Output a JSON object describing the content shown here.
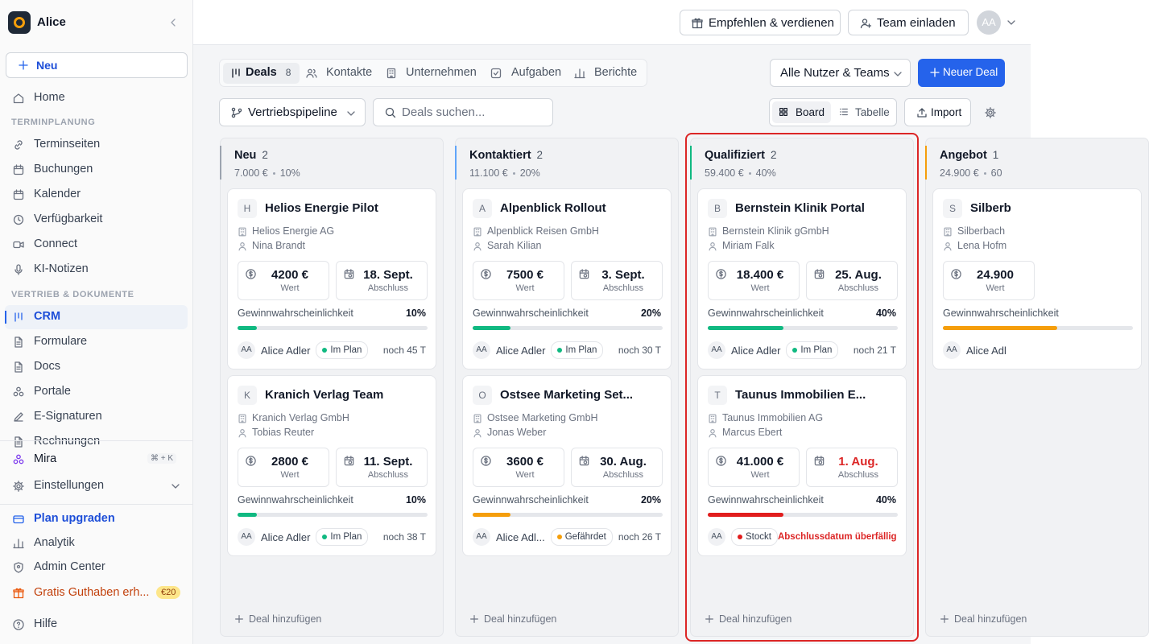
{
  "sidebar": {
    "workspace": "Alice",
    "new_button": "Neu",
    "home": "Home",
    "sections": [
      {
        "heading": "TERMINPLANUNG",
        "items": [
          "Terminseiten",
          "Buchungen",
          "Kalender",
          "Verfügbarkeit",
          "Connect",
          "KI-Notizen"
        ]
      },
      {
        "heading": "VERTRIEB & DOKUMENTE",
        "items": [
          "CRM",
          "Formulare",
          "Docs",
          "Portale",
          "E-Signaturen",
          "Rechnungen"
        ]
      }
    ],
    "assistant": "Mira",
    "shortcut": "⌘ + K",
    "settings": "Einstellungen",
    "upgrade": "Plan upgraden",
    "analytics": "Analytik",
    "admin": "Admin Center",
    "credit": "Gratis Guthaben erh...",
    "credit_badge": "€20",
    "help": "Hilfe"
  },
  "topbar": {
    "refer": "Empfehlen & verdienen",
    "invite": "Team einladen",
    "avatar": "AA"
  },
  "tabs": [
    {
      "label": "Deals",
      "count": "8"
    },
    {
      "label": "Kontakte"
    },
    {
      "label": "Unternehmen"
    },
    {
      "label": "Aufgaben"
    },
    {
      "label": "Berichte"
    }
  ],
  "filters": {
    "owner": "Alle Nutzer & Teams",
    "new_deal": "Neuer Deal",
    "pipeline": "Vertriebspipeline",
    "search_placeholder": "Deals suchen...",
    "views": [
      "Board",
      "Tabelle"
    ],
    "import": "Import"
  },
  "board": {
    "labels": {
      "value": "Wert",
      "close": "Abschluss",
      "probability": "Gewinnwahrscheinlichkeit"
    },
    "add_deal": "Deal hinzufügen",
    "columns": [
      {
        "name": "Neu",
        "count": "2",
        "total": "7.000 €",
        "probability": "10%",
        "accent": "#9ca3af",
        "cards": [
          {
            "initial": "H",
            "title": "Helios Energie Pilot",
            "company": "Helios Energie AG",
            "contact": "Nina Brandt",
            "value": "4200 €",
            "close_date": "18. Sept.",
            "probability": {
              "value": 10,
              "label": "10%"
            },
            "bar_color": "#10b981",
            "owner_initials": "AA",
            "owner": "Alice Adler",
            "status": "Im Plan",
            "status_color": "#10b981",
            "remaining": "noch 45 T"
          },
          {
            "initial": "K",
            "title": "Kranich Verlag Team",
            "company": "Kranich Verlag GmbH",
            "contact": "Tobias Reuter",
            "value": "2800 €",
            "close_date": "11. Sept.",
            "probability": {
              "value": 10,
              "label": "10%"
            },
            "bar_color": "#10b981",
            "owner_initials": "AA",
            "owner": "Alice Adler",
            "status": "Im Plan",
            "status_color": "#10b981",
            "remaining": "noch 38 T"
          }
        ]
      },
      {
        "name": "Kontaktiert",
        "count": "2",
        "total": "11.100 €",
        "probability": "20%",
        "accent": "#60a5fa",
        "cards": [
          {
            "initial": "A",
            "title": "Alpenblick Rollout",
            "company": "Alpenblick Reisen GmbH",
            "contact": "Sarah Kilian",
            "value": "7500 €",
            "close_date": "3. Sept.",
            "probability": {
              "value": 20,
              "label": "20%"
            },
            "bar_color": "#10b981",
            "owner_initials": "AA",
            "owner": "Alice Adler",
            "status": "Im Plan",
            "status_color": "#10b981",
            "remaining": "noch 30 T"
          },
          {
            "initial": "O",
            "title": "Ostsee Marketing Set...",
            "company": "Ostsee Marketing GmbH",
            "contact": "Jonas Weber",
            "value": "3600 €",
            "close_date": "30. Aug.",
            "probability": {
              "value": 20,
              "label": "20%"
            },
            "bar_color": "#f59e0b",
            "owner_initials": "AA",
            "owner": "Alice Adl...",
            "status": "Gefährdet",
            "status_color": "#f59e0b",
            "remaining": "noch 26 T"
          }
        ]
      },
      {
        "name": "Qualifiziert",
        "count": "2",
        "total": "59.400 €",
        "probability": "40%",
        "accent": "#10b981",
        "cards": [
          {
            "initial": "B",
            "title": "Bernstein Klinik Portal",
            "company": "Bernstein Klinik gGmbH",
            "contact": "Miriam Falk",
            "value": "18.400 €",
            "close_date": "25. Aug.",
            "probability": {
              "value": 40,
              "label": "40%"
            },
            "bar_color": "#10b981",
            "owner_initials": "AA",
            "owner": "Alice Adler",
            "status": "Im Plan",
            "status_color": "#10b981",
            "remaining": "noch 21 T"
          },
          {
            "initial": "T",
            "title": "Taunus Immobilien E...",
            "company": "Taunus Immobilien AG",
            "contact": "Marcus Ebert",
            "value": "41.000 €",
            "close_date": "1. Aug.",
            "probability": {
              "value": 40,
              "label": "40%"
            },
            "bar_color": "#e11d1d",
            "owner_initials": "AA",
            "status": "Stockt",
            "status_color": "#e11d1d",
            "remaining": "Abschlussdatum überfällig",
            "overdue": true
          }
        ]
      },
      {
        "name": "Angebot",
        "count": "1",
        "total": "24.900 €",
        "probability": "60",
        "accent": "#f59e0b",
        "cards": [
          {
            "initial": "S",
            "title": "Silberb",
            "company": "Silberbach",
            "contact": "Lena Hofm",
            "value": "24.900",
            "probability": {
              "value": 60
            },
            "bar_color": "#f59e0b",
            "owner_initials": "AA",
            "owner": "Alice Adl"
          }
        ]
      }
    ]
  }
}
